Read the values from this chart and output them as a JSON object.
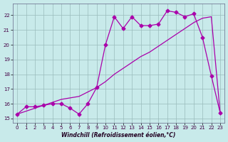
{
  "xlabel": "Windchill (Refroidissement éolien,°C)",
  "background_color": "#c8eaea",
  "grid_color": "#99bbbb",
  "line_color": "#aa00aa",
  "xlim_min": -0.5,
  "xlim_max": 23.5,
  "ylim_min": 14.7,
  "ylim_max": 22.8,
  "yticks": [
    15,
    16,
    17,
    18,
    19,
    20,
    21,
    22
  ],
  "xticks": [
    0,
    1,
    2,
    3,
    4,
    5,
    6,
    7,
    8,
    9,
    10,
    11,
    12,
    13,
    14,
    15,
    16,
    17,
    18,
    19,
    20,
    21,
    22,
    23
  ],
  "hours": [
    0,
    1,
    2,
    3,
    4,
    5,
    6,
    7,
    8,
    9,
    10,
    11,
    12,
    13,
    14,
    15,
    16,
    17,
    18,
    19,
    20,
    21,
    22,
    23
  ],
  "windchill": [
    15.3,
    15.8,
    15.8,
    15.9,
    16.0,
    16.0,
    15.7,
    15.3,
    16.0,
    17.1,
    20.0,
    21.9,
    21.1,
    21.9,
    21.3,
    21.3,
    21.4,
    22.3,
    22.2,
    21.9,
    22.1,
    20.5,
    17.9,
    15.4
  ],
  "temp": [
    15.3,
    15.5,
    15.7,
    15.9,
    16.1,
    16.3,
    16.4,
    16.5,
    16.8,
    17.1,
    17.5,
    18.0,
    18.4,
    18.8,
    19.2,
    19.5,
    19.9,
    20.3,
    20.7,
    21.1,
    21.5,
    21.8,
    21.9,
    15.4
  ],
  "xlabel_fontsize": 5.5,
  "tick_labelsize": 5,
  "linewidth": 0.9,
  "markersize": 2.5
}
